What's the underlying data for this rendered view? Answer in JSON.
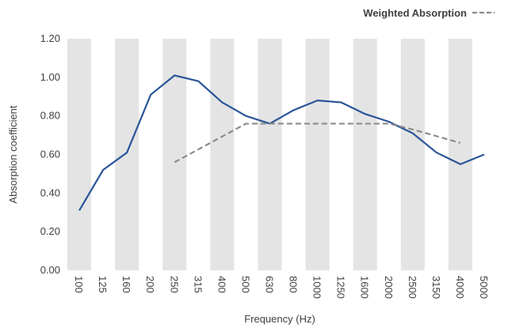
{
  "chart_data": {
    "type": "line",
    "title": "",
    "xlabel": "Frequency (Hz)",
    "ylabel": "Absorption coefficient",
    "categories": [
      "100",
      "125",
      "160",
      "200",
      "250",
      "315",
      "400",
      "500",
      "630",
      "800",
      "1000",
      "1250",
      "1600",
      "2000",
      "2500",
      "3150",
      "4000",
      "5000"
    ],
    "ylim": [
      0,
      1.2
    ],
    "yticks": [
      "0.00",
      "0.20",
      "0.40",
      "0.60",
      "0.80",
      "1.00",
      "1.20"
    ],
    "bands": "alternating-columns",
    "legend": {
      "position": "top-right",
      "label": "Weighted Absorption"
    },
    "series": [
      {
        "values": [
          0.31,
          0.52,
          0.61,
          0.91,
          1.01,
          0.98,
          0.87,
          0.8,
          0.76,
          0.83,
          0.88,
          0.87,
          0.81,
          0.77,
          0.71,
          0.61,
          0.55,
          0.6
        ],
        "color": "#2a5599",
        "style": "solid"
      },
      {
        "name": "Weighted Absorption",
        "values": [
          null,
          null,
          null,
          null,
          0.56,
          null,
          null,
          0.76,
          0.76,
          0.76,
          0.76,
          0.76,
          0.76,
          0.76,
          0.73,
          null,
          0.66,
          null
        ],
        "color": "#8c8c8c",
        "style": "dashed"
      }
    ]
  }
}
